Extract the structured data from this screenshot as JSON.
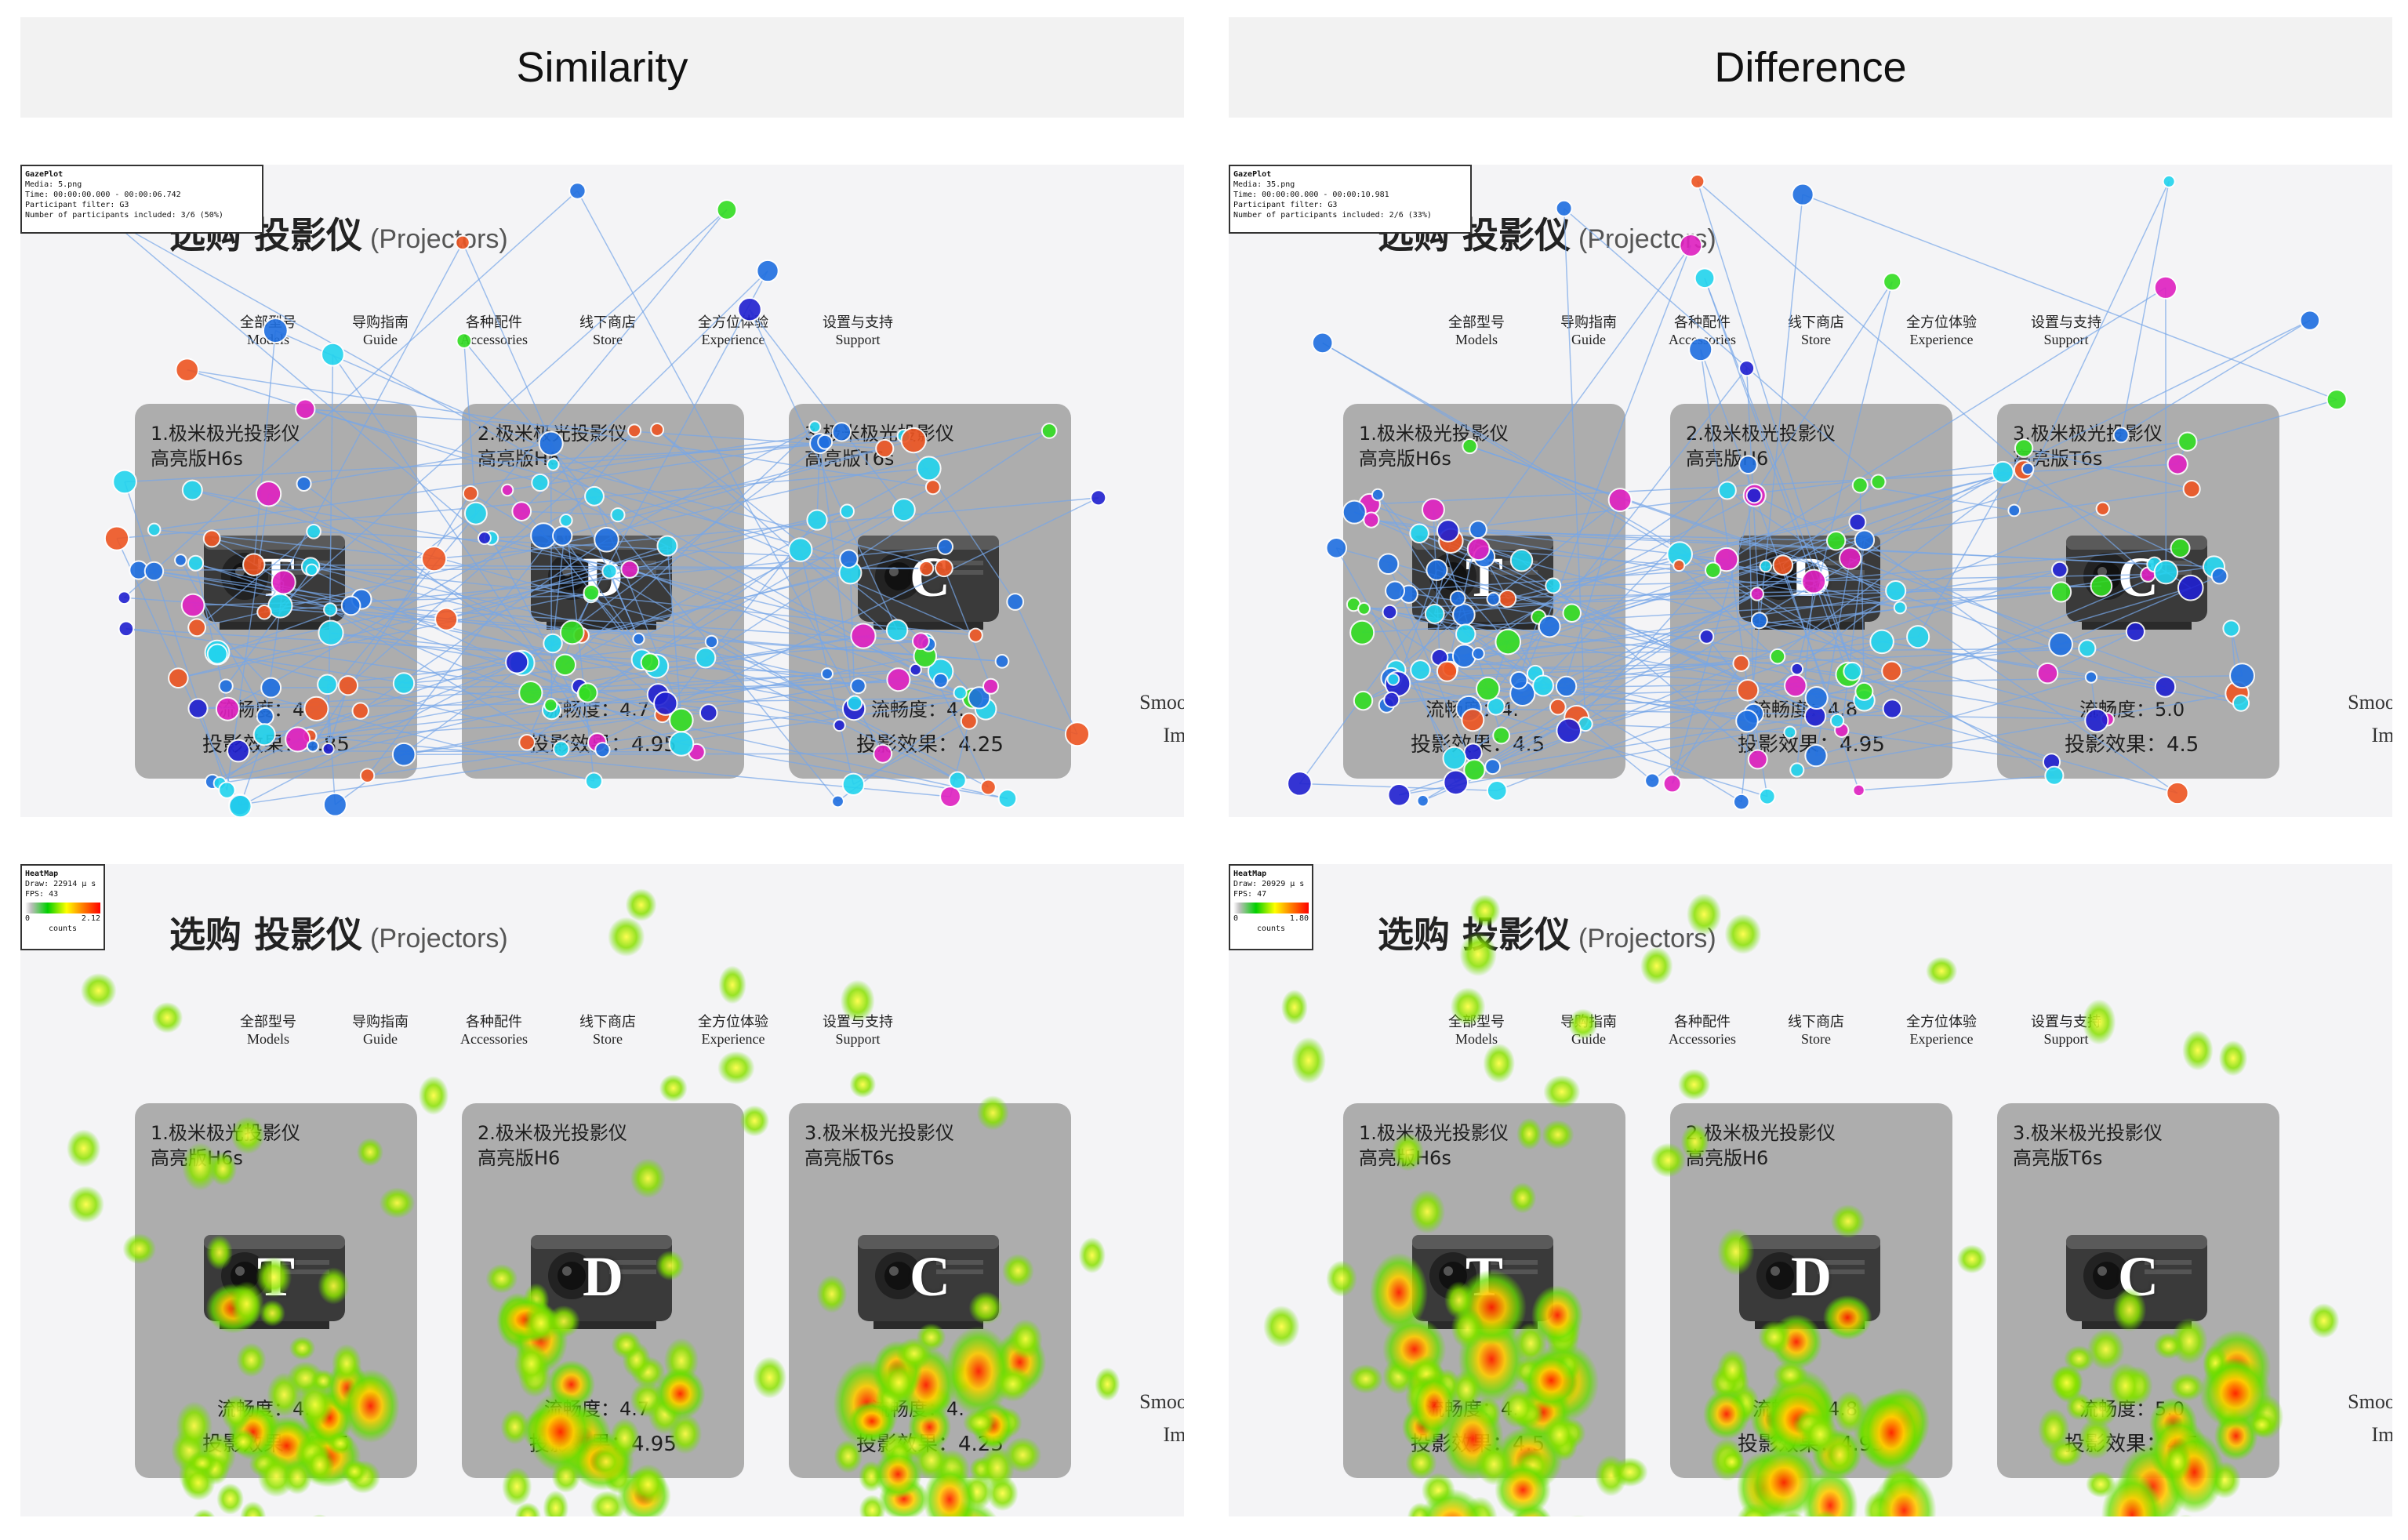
{
  "headers": {
    "left": "Similarity",
    "right": "Difference"
  },
  "page": {
    "title": "选购 投影仪",
    "subtitle": "(Projectors)",
    "nav": [
      {
        "cn": "全部型号",
        "en": "Models"
      },
      {
        "cn": "导购指南",
        "en": "Guide"
      },
      {
        "cn": "各种配件",
        "en": "Accessories"
      },
      {
        "cn": "线下商店",
        "en": "Store"
      },
      {
        "cn": "全方位体验",
        "en": "Experience"
      },
      {
        "cn": "设置与支持",
        "en": "Support"
      }
    ],
    "smoothness_line1": "Smoothness",
    "smoothness_line2": "Image"
  },
  "cards_left": [
    {
      "name1": "1.极米极光投影仪",
      "name2": "高亮版H6s",
      "letter": "T",
      "smooth": "流畅度：4.",
      "effect": "投影效果：4.85"
    },
    {
      "name1": "2.极米极光投影仪",
      "name2": "高亮版H6",
      "letter": "D",
      "smooth": "流畅度：4.7",
      "effect": "投影效果：4.95"
    },
    {
      "name1": "3.极米极光投影仪",
      "name2": "高亮版T6s",
      "letter": "C",
      "smooth": "流畅度：4.",
      "effect": "投影效果：4.25"
    }
  ],
  "cards_right": [
    {
      "name1": "1.极米极光投影仪",
      "name2": "高亮版H6s",
      "letter": "T",
      "smooth": "流畅度：4.",
      "effect": "投影效果：4.5"
    },
    {
      "name1": "2.极米极光投影仪",
      "name2": "高亮版H6",
      "letter": "D",
      "smooth": "流畅度：4.8",
      "effect": "投影效果：4.95"
    },
    {
      "name1": "3.极米极光投影仪",
      "name2": "高亮版T6s",
      "letter": "C",
      "smooth": "流畅度：5.0",
      "effect": "投影效果：4.5"
    }
  ],
  "gaze_left": {
    "title": "GazePlot",
    "media": "Media: 5.png",
    "time": "Time: 00:00:00.000 - 00:00:06.742",
    "filter": "Participant filter: G3",
    "participants": "Number of participants included: 3/6 (50%)"
  },
  "gaze_right": {
    "title": "GazePlot",
    "media": "Media: 35.png",
    "time": "Time: 00:00:00.000 - 00:00:10.981",
    "filter": "Participant filter: G3",
    "participants": "Number of participants included: 2/6 (33%)"
  },
  "heat_left": {
    "title": "HeatMap",
    "draw": "Draw: 22914 µ s",
    "fps": "FPS: 43",
    "min": "0",
    "max": "2.12",
    "unit": "counts"
  },
  "heat_right": {
    "title": "HeatMap",
    "draw": "Draw: 20929 µ s",
    "fps": "FPS: 47",
    "min": "0",
    "max": "1.80",
    "unit": "counts"
  },
  "colors": {
    "blue": "#1f6fe0",
    "cyan": "#22d4ee",
    "navy": "#2020d0",
    "green": "#33dd22",
    "magenta": "#e020c0",
    "orange": "#ee5522",
    "line": "#77a7e8",
    "card": "#adadad"
  }
}
